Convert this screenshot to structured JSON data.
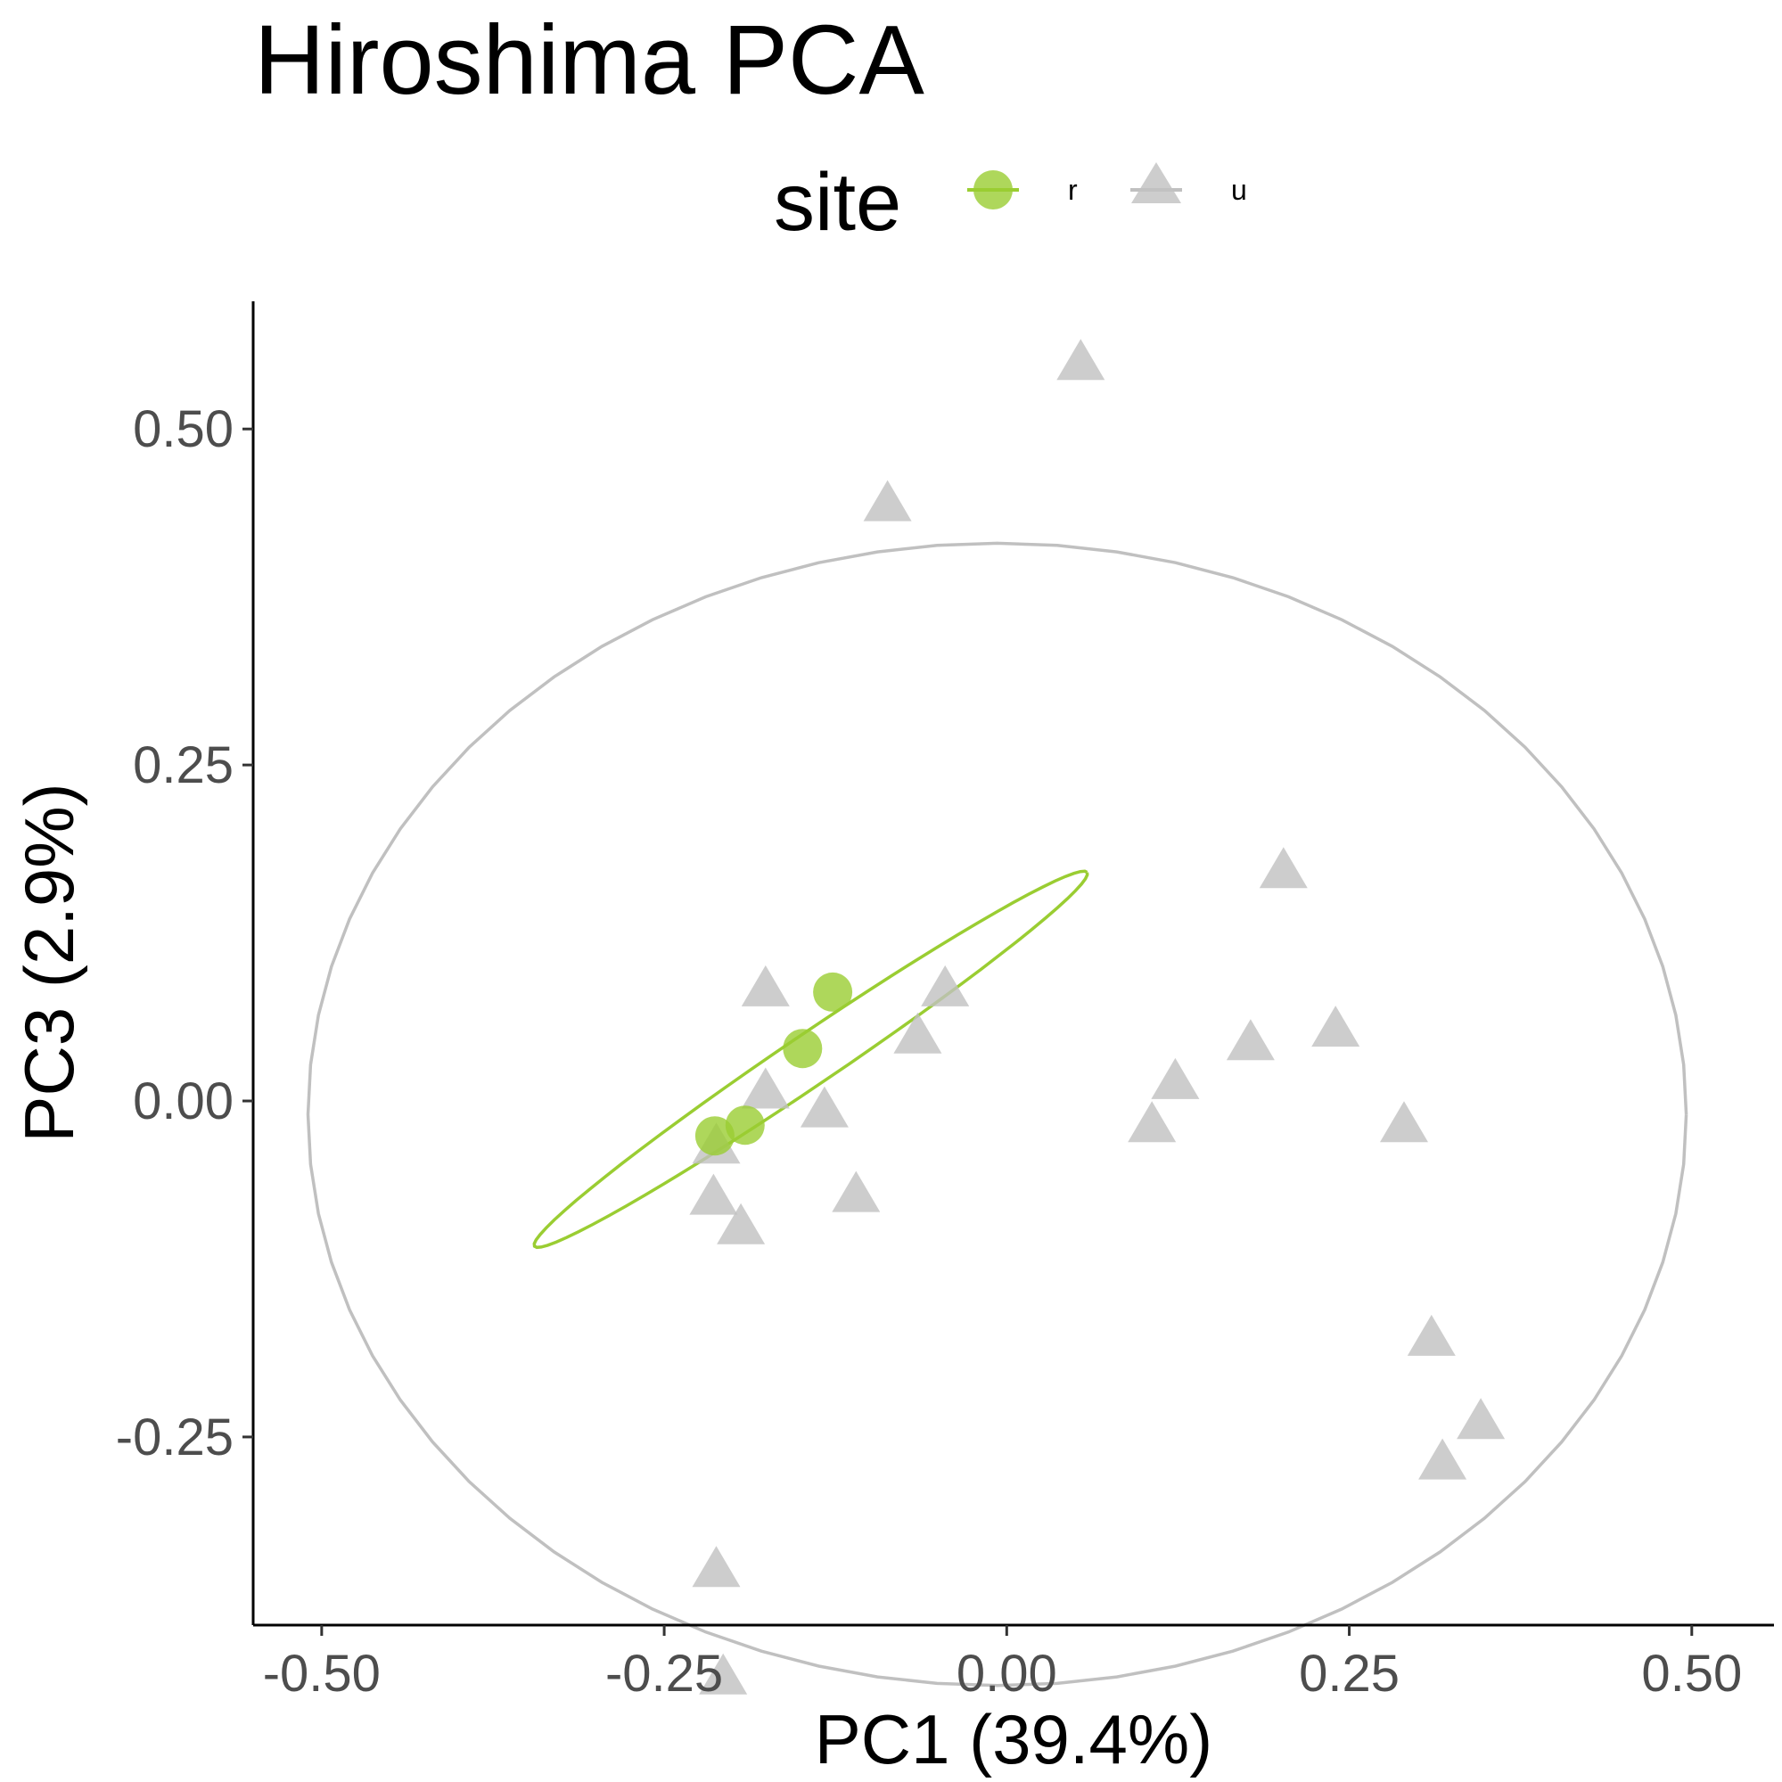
{
  "chart_data": {
    "type": "scatter",
    "title": "Hiroshima PCA",
    "xlabel": "PC1 (39.4%)",
    "ylabel": "PC3 (2.9%)",
    "xlim": [
      -0.55,
      0.56
    ],
    "ylim": [
      -0.39,
      0.595
    ],
    "x_ticks": [
      -0.5,
      -0.25,
      0.0,
      0.25,
      0.5
    ],
    "x_tick_labels": [
      "-0.50",
      "-0.25",
      "0.00",
      "0.25",
      "0.50"
    ],
    "y_ticks": [
      -0.25,
      0.0,
      0.25,
      0.5
    ],
    "y_tick_labels": [
      "-0.25",
      "0.00",
      "0.25",
      "0.50"
    ],
    "grid": false,
    "legend": {
      "title": "site",
      "placement": "top"
    },
    "series": [
      {
        "name": "r",
        "color": "#9acd32",
        "marker": "circle",
        "points": [
          {
            "x": -0.127,
            "y": 0.081
          },
          {
            "x": -0.149,
            "y": 0.039
          },
          {
            "x": -0.191,
            "y": -0.018
          },
          {
            "x": -0.213,
            "y": -0.026
          }
        ],
        "ellipse": {
          "cx": -0.143,
          "cy": 0.031,
          "rx": 0.245,
          "ry": 0.0188,
          "angle_deg": 34.6
        }
      },
      {
        "name": "u",
        "color": "#c0c0c0",
        "marker": "triangle",
        "points": [
          {
            "x": 0.054,
            "y": 0.548
          },
          {
            "x": -0.087,
            "y": 0.443
          },
          {
            "x": 0.202,
            "y": 0.17
          },
          {
            "x": -0.176,
            "y": 0.082
          },
          {
            "x": -0.045,
            "y": 0.082
          },
          {
            "x": -0.065,
            "y": 0.047
          },
          {
            "x": 0.178,
            "y": 0.042
          },
          {
            "x": 0.24,
            "y": 0.052
          },
          {
            "x": -0.176,
            "y": 0.006
          },
          {
            "x": 0.123,
            "y": 0.013
          },
          {
            "x": -0.133,
            "y": -0.008
          },
          {
            "x": 0.106,
            "y": -0.019
          },
          {
            "x": 0.29,
            "y": -0.019
          },
          {
            "x": -0.212,
            "y": -0.035
          },
          {
            "x": -0.214,
            "y": -0.073
          },
          {
            "x": -0.194,
            "y": -0.095
          },
          {
            "x": -0.11,
            "y": -0.071
          },
          {
            "x": 0.31,
            "y": -0.178
          },
          {
            "x": 0.346,
            "y": -0.24
          },
          {
            "x": 0.318,
            "y": -0.27
          },
          {
            "x": -0.212,
            "y": -0.35
          },
          {
            "x": -0.207,
            "y": -0.43
          }
        ],
        "ellipse": {
          "cx": -0.007,
          "cy": -0.01,
          "rx": 0.503,
          "ry": 0.425,
          "angle_deg": 0
        }
      }
    ]
  }
}
